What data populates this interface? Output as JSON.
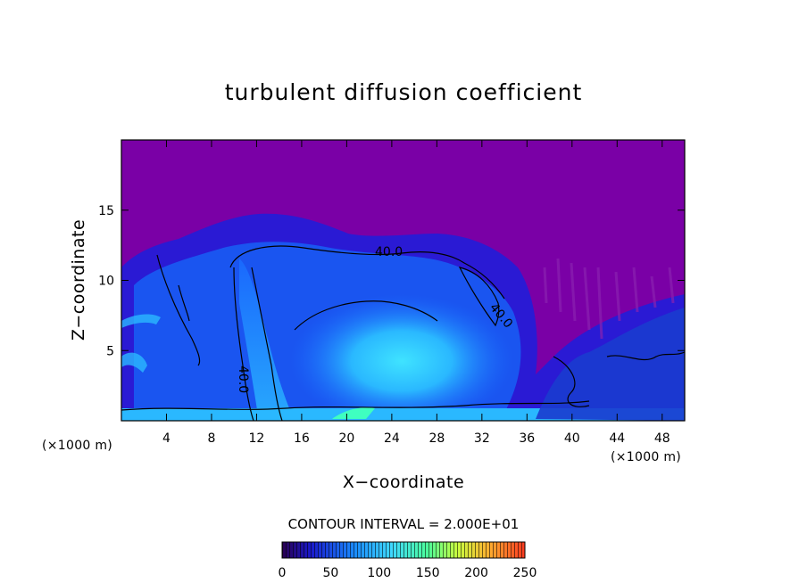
{
  "chart_data": {
    "type": "heatmap",
    "title": "turbulent diffusion coefficient",
    "xlabel": "X−coordinate",
    "ylabel": "Z−coordinate",
    "x_unit_left": "(×1000 m)",
    "x_unit_right": "(×1000 m)",
    "xlim": [
      0,
      50
    ],
    "ylim": [
      0,
      20
    ],
    "x_ticks": [
      "4",
      "8",
      "12",
      "16",
      "20",
      "24",
      "28",
      "32",
      "36",
      "40",
      "44",
      "48"
    ],
    "x_tick_values": [
      4,
      8,
      12,
      16,
      20,
      24,
      28,
      32,
      36,
      40,
      44,
      48
    ],
    "y_ticks": [
      "5",
      "10",
      "15"
    ],
    "y_tick_values": [
      5,
      10,
      15
    ],
    "contour_interval_text": "CONTOUR INTERVAL = 2.000E+01",
    "contour_labels": [
      {
        "text": "40.0",
        "x": 24.5,
        "z": 12.0
      },
      {
        "text": "40.0",
        "x": 33.5,
        "z": 9.2
      },
      {
        "text": "40.0",
        "x": 10.5,
        "z": 4.0
      }
    ],
    "colorbar": {
      "min": 0,
      "max": 250,
      "tick_labels": [
        "0",
        "50",
        "100",
        "150",
        "200",
        "250"
      ],
      "tick_values": [
        0,
        50,
        100,
        150,
        200,
        250
      ]
    },
    "background_value": 0,
    "grid": false,
    "legend": "colorbar bottom"
  },
  "colors": {
    "background_purple": "#7a00a6",
    "low_blue": "#1e14c8",
    "mid_blue": "#1a5bff",
    "cyan": "#2ab8ff",
    "bright_cyan": "#3fe3ff",
    "contour": "#000000"
  }
}
